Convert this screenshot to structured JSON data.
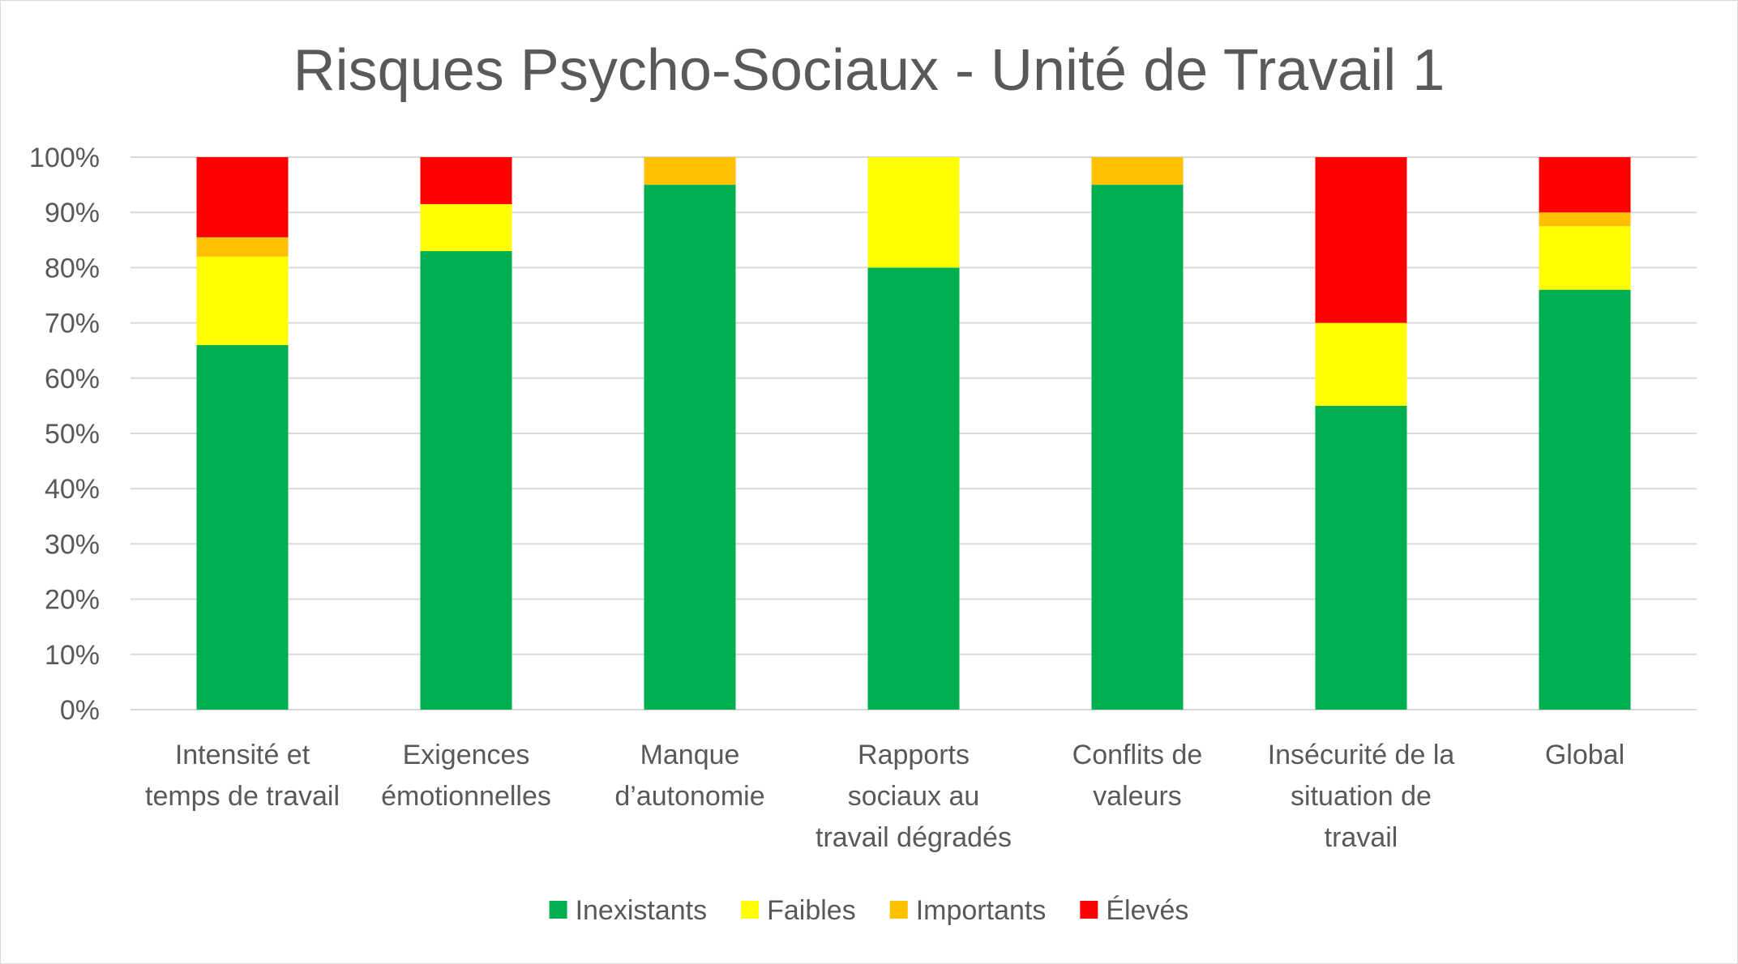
{
  "chart_data": {
    "type": "bar",
    "stacked": true,
    "percent": true,
    "title": "Risques Psycho-Sociaux - Unité de Travail 1",
    "xlabel": "",
    "ylabel": "",
    "ylim": [
      0,
      100
    ],
    "yticks": [
      "0%",
      "10%",
      "20%",
      "30%",
      "40%",
      "50%",
      "60%",
      "70%",
      "80%",
      "90%",
      "100%"
    ],
    "grid": true,
    "legend_position": "bottom",
    "categories": [
      [
        "Intensité et",
        "temps de travail"
      ],
      [
        "Exigences",
        "émotionnelles"
      ],
      [
        "Manque",
        "d’autonomie"
      ],
      [
        "Rapports",
        "sociaux au",
        "travail dégradés"
      ],
      [
        "Conflits de",
        "valeurs"
      ],
      [
        "Insécurité de la",
        "situation de",
        "travail"
      ],
      [
        "Global"
      ]
    ],
    "series": [
      {
        "name": "Inexistants",
        "color": "#00b050",
        "values": [
          66,
          83,
          95,
          80,
          95,
          55,
          76
        ]
      },
      {
        "name": "Faibles",
        "color": "#ffff00",
        "values": [
          16,
          8.5,
          0,
          20,
          0,
          15,
          11.5
        ]
      },
      {
        "name": "Importants",
        "color": "#ffc000",
        "values": [
          3.5,
          0,
          5,
          0,
          5,
          0,
          2.5
        ]
      },
      {
        "name": "Élevés",
        "color": "#ff0000",
        "values": [
          14.5,
          8.5,
          0,
          0,
          0,
          30,
          10
        ]
      }
    ]
  }
}
